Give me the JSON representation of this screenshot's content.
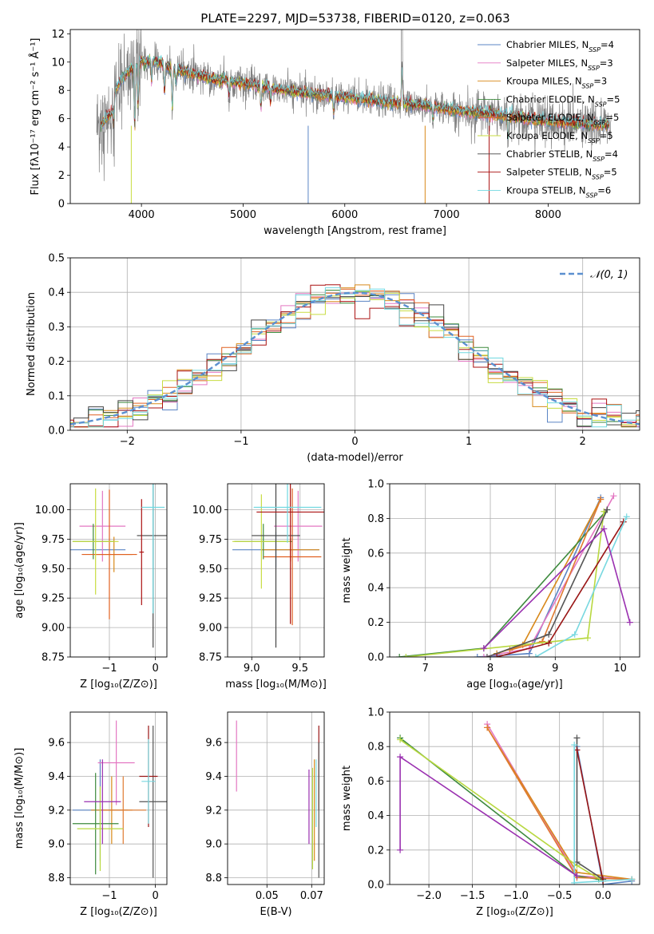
{
  "title": "PLATE=2297, MJD=53738, FIBERID=0120, z=0.063",
  "colors": {
    "series": [
      "#5b84c4",
      "#e377c2",
      "#d8891a",
      "#3d8a3d",
      "#e06020",
      "#c8dc40",
      "#444444",
      "#aa1111",
      "#70d8e0"
    ],
    "weights": [
      "#5b84c4",
      "#e377c2",
      "#d8891a",
      "#3d8a3d",
      "#e07a30",
      "#b8d840",
      "#555555",
      "#991515",
      "#78d8e0",
      "#9a30b0"
    ],
    "data_gray": "#808080",
    "normal_curve": "#5b90d0"
  },
  "chart_data": [
    {
      "type": "line",
      "panel": "spectrum",
      "title": "PLATE=2297, MJD=53738, FIBERID=0120, z=0.063",
      "xlabel": "wavelength [Angstrom, rest frame]",
      "ylabel": "Flux [fλ10⁻¹⁷ erg cm⁻² s⁻¹ Å⁻¹]",
      "xlim": [
        3300,
        8900
      ],
      "ylim": [
        0,
        12.3
      ],
      "xticks": [
        4000,
        5000,
        6000,
        7000,
        8000
      ],
      "yticks": [
        0,
        2,
        4,
        6,
        8,
        10,
        12
      ],
      "legend_position": "top-right",
      "legend": [
        {
          "name": "Chabrier MILES",
          "nssp": "4"
        },
        {
          "name": "Salpeter MILES",
          "nssp": "3"
        },
        {
          "name": "Kroupa MILES",
          "nssp": "3"
        },
        {
          "name": "Chabrier ELODIE",
          "nssp": "5"
        },
        {
          "name": "Salpeter ELODIE",
          "nssp": "5"
        },
        {
          "name": "Kroupa ELODIE",
          "nssp": "5"
        },
        {
          "name": "Chabrier STELIB",
          "nssp": "4"
        },
        {
          "name": "Salpeter STELIB",
          "nssp": "5"
        },
        {
          "name": "Kroupa STELIB",
          "nssp": "6"
        }
      ],
      "continuum": {
        "x": [
          3600,
          3700,
          3800,
          3900,
          4000,
          4100,
          4200,
          4300,
          4500,
          4700,
          5000,
          5300,
          5600,
          6000,
          6400,
          6800,
          7200,
          7600,
          8000,
          8400,
          8800
        ],
        "y": [
          6.3,
          7.2,
          8.8,
          9.5,
          10.0,
          10.1,
          9.9,
          9.5,
          9.2,
          8.8,
          8.5,
          8.1,
          7.8,
          7.5,
          7.2,
          6.9,
          6.5,
          6.2,
          5.8,
          5.6,
          5.5
        ]
      }
    },
    {
      "type": "step",
      "panel": "residual-histogram",
      "xlabel": "(data-model)/error",
      "ylabel": "Normed distribution",
      "xlim": [
        -2.5,
        2.5
      ],
      "ylim": [
        0,
        0.5
      ],
      "xticks": [
        -2,
        -1,
        0,
        1,
        2
      ],
      "yticks": [
        0.0,
        0.1,
        0.2,
        0.3,
        0.4,
        0.5
      ],
      "grid": true,
      "legend": [
        {
          "name": "𝒩(0, 1)"
        }
      ],
      "legend_position": "top-right",
      "bins": 40
    },
    {
      "type": "scatter",
      "panel": "age-vs-metallicity",
      "xlabel": "Z [log₁₀(Z/Z⊙)]",
      "ylabel": "age  [log₁₀(age/yr)]",
      "xlim": [
        -1.85,
        0.25
      ],
      "ylim": [
        8.75,
        10.22
      ],
      "xticks": [
        -1,
        0
      ],
      "yticks": [
        8.75,
        9.0,
        9.25,
        9.5,
        9.75,
        10.0
      ],
      "grid": true,
      "points": [
        {
          "x": -1.25,
          "y": 9.66,
          "xerr": 0.6,
          "yerr": 0.0
        },
        {
          "x": -1.15,
          "y": 9.86,
          "xerr": 0.5,
          "yerr": 0.3
        },
        {
          "x": -0.9,
          "y": 9.62,
          "xerr": 0.4,
          "yerr": 0.15
        },
        {
          "x": -1.35,
          "y": 9.73,
          "xerr": 0.45,
          "yerr": 0.15
        },
        {
          "x": -1.0,
          "y": 9.62,
          "xerr": 0.6,
          "yerr": 0.55
        },
        {
          "x": -1.3,
          "y": 9.73,
          "xerr": 0.5,
          "yerr": 0.45
        },
        {
          "x": -0.05,
          "y": 9.78,
          "xerr": 0.35,
          "yerr": 0.95
        },
        {
          "x": -0.3,
          "y": 9.64,
          "xerr": 0.05,
          "yerr": 0.45
        },
        {
          "x": -0.05,
          "y": 10.02,
          "xerr": 0.25,
          "yerr": 0.9
        }
      ]
    },
    {
      "type": "scatter",
      "panel": "age-vs-mass",
      "xlabel": "mass [log₁₀(M/M⊙)]",
      "ylabel": "",
      "xlim": [
        8.75,
        9.75
      ],
      "ylim": [
        8.75,
        10.22
      ],
      "xticks": [
        9.0,
        9.5
      ],
      "yticks": [
        8.75,
        9.0,
        9.25,
        9.5,
        9.75,
        10.0
      ],
      "grid": true,
      "points": [
        {
          "x": 9.25,
          "y": 9.66,
          "xerr": 0.45,
          "yerr": 0.15
        },
        {
          "x": 9.48,
          "y": 9.86,
          "xerr": 0.25,
          "yerr": 0.3
        },
        {
          "x": 9.4,
          "y": 9.66,
          "xerr": 0.3,
          "yerr": 0.1
        },
        {
          "x": 9.12,
          "y": 9.73,
          "xerr": 0.3,
          "yerr": 0.15
        },
        {
          "x": 9.42,
          "y": 9.6,
          "xerr": 0.3,
          "yerr": 0.58
        },
        {
          "x": 9.1,
          "y": 9.73,
          "xerr": 0.3,
          "yerr": 0.4
        },
        {
          "x": 9.25,
          "y": 9.78,
          "xerr": 0.25,
          "yerr": 0.95
        },
        {
          "x": 9.4,
          "y": 9.98,
          "xerr": 0.35,
          "yerr": 0.95
        },
        {
          "x": 9.37,
          "y": 10.02,
          "xerr": 0.35,
          "yerr": 0.3
        }
      ]
    },
    {
      "type": "line",
      "panel": "mass-weight-vs-age",
      "xlabel": "age  [log₁₀(age/yr)]",
      "ylabel": "mass weight",
      "xlim": [
        6.45,
        10.3
      ],
      "ylim": [
        0,
        1
      ],
      "xticks": [
        7,
        8,
        9,
        10
      ],
      "yticks": [
        0.0,
        0.2,
        0.4,
        0.6,
        0.8,
        1.0
      ],
      "grid": true,
      "series": [
        {
          "x": [
            7.8,
            8.6,
            9.7
          ],
          "y": [
            0.0,
            0.02,
            0.92
          ]
        },
        {
          "x": [
            7.9,
            8.6,
            9.9
          ],
          "y": [
            0.0,
            0.05,
            0.93
          ]
        },
        {
          "x": [
            8.1,
            8.5,
            9.7
          ],
          "y": [
            0.02,
            0.07,
            0.91
          ]
        },
        {
          "x": [
            6.6,
            7.9,
            9.8
          ],
          "y": [
            0.0,
            0.05,
            0.85
          ]
        },
        {
          "x": [
            8.3,
            8.8,
            9.7
          ],
          "y": [
            0.04,
            0.09,
            0.91
          ]
        },
        {
          "x": [
            6.7,
            9.5,
            9.75
          ],
          "y": [
            0.0,
            0.11,
            0.84
          ]
        },
        {
          "x": [
            7.95,
            8.9,
            9.8
          ],
          "y": [
            0.0,
            0.13,
            0.85
          ]
        },
        {
          "x": [
            8.1,
            8.9,
            10.05
          ],
          "y": [
            0.0,
            0.08,
            0.78
          ]
        },
        {
          "x": [
            8.7,
            9.3,
            10.1
          ],
          "y": [
            0.0,
            0.13,
            0.81
          ]
        },
        {
          "x": [
            7.9,
            9.75,
            10.15
          ],
          "y": [
            0.05,
            0.74,
            0.2
          ]
        }
      ]
    },
    {
      "type": "scatter",
      "panel": "mass-vs-metallicity",
      "xlabel": "Z [log₁₀(Z/Z⊙)]",
      "ylabel": "mass [log₁₀(M/M⊙)]",
      "xlim": [
        -1.85,
        0.25
      ],
      "ylim": [
        8.76,
        9.78
      ],
      "xticks": [
        -1,
        0
      ],
      "yticks": [
        8.8,
        9.0,
        9.2,
        9.4,
        9.6
      ],
      "grid": true,
      "points": [
        {
          "x": -1.2,
          "y": 9.2,
          "xerr": 0.6,
          "yerr": 0.3
        },
        {
          "x": -0.85,
          "y": 9.48,
          "xerr": 0.4,
          "yerr": 0.25
        },
        {
          "x": -0.95,
          "y": 9.2,
          "xerr": 0.45,
          "yerr": 0.2
        },
        {
          "x": -1.3,
          "y": 9.12,
          "xerr": 0.5,
          "yerr": 0.3
        },
        {
          "x": -0.7,
          "y": 9.2,
          "xerr": 0.5,
          "yerr": 0.2
        },
        {
          "x": -1.2,
          "y": 9.09,
          "xerr": 0.5,
          "yerr": 0.25
        },
        {
          "x": -0.05,
          "y": 9.25,
          "xerr": 0.3,
          "yerr": 0.45
        },
        {
          "x": -0.15,
          "y": 9.4,
          "xerr": 0.2,
          "yerr": 0.3
        },
        {
          "x": -0.15,
          "y": 9.37,
          "xerr": 0.15,
          "yerr": 0.25
        },
        {
          "x": -1.15,
          "y": 9.25,
          "xerr": 0.4,
          "yerr": 0.25
        }
      ]
    },
    {
      "type": "scatter",
      "panel": "mass-vs-ebv",
      "xlabel": "E(B-V)",
      "ylabel": "",
      "xlim": [
        0.028,
        0.082
      ],
      "ylim": [
        8.76,
        9.78
      ],
      "xticks": [
        0.05,
        0.075
      ],
      "yticks": [
        8.8,
        9.0,
        9.2,
        9.4,
        9.6
      ],
      "grid": true,
      "points": [
        {
          "x": 0.033,
          "y": 9.52,
          "yerr": 0.21
        },
        {
          "x": 0.0735,
          "y": 9.22,
          "yerr": 0.22
        },
        {
          "x": 0.0755,
          "y": 9.15,
          "yerr": 0.3
        },
        {
          "x": 0.0765,
          "y": 9.2,
          "yerr": 0.3
        },
        {
          "x": 0.079,
          "y": 9.45,
          "yerr": 0.25
        },
        {
          "x": 0.079,
          "y": 9.2,
          "yerr": 0.4
        },
        {
          "x": 0.0775,
          "y": 9.3,
          "yerr": 0.2
        }
      ]
    },
    {
      "type": "line",
      "panel": "mass-weight-vs-metallicity",
      "xlabel": "Z [log₁₀(Z/Z⊙)]",
      "ylabel": "mass weight",
      "xlim": [
        -2.45,
        0.42
      ],
      "ylim": [
        0,
        1
      ],
      "xticks": [
        -2.0,
        -1.5,
        -1.0,
        -0.5,
        0.0
      ],
      "yticks": [
        0.0,
        0.2,
        0.4,
        0.6,
        0.8,
        1.0
      ],
      "grid": true,
      "series": [
        {
          "x": [
            -0.3,
            0.0,
            0.33
          ],
          "y": [
            0.8,
            0.0,
            0.02
          ]
        },
        {
          "x": [
            -1.33,
            -0.3,
            0.33
          ],
          "y": [
            0.93,
            0.05,
            0.03
          ]
        },
        {
          "x": [
            -1.33,
            -0.3,
            0.33
          ],
          "y": [
            0.91,
            0.07,
            0.03
          ]
        },
        {
          "x": [
            -2.33,
            -0.3,
            -0.05
          ],
          "y": [
            0.85,
            0.05,
            0.03
          ]
        },
        {
          "x": [
            -1.33,
            -0.3,
            0.33
          ],
          "y": [
            0.91,
            0.04,
            0.03
          ]
        },
        {
          "x": [
            -2.33,
            -0.3,
            0.0
          ],
          "y": [
            0.84,
            0.11,
            0.02
          ]
        },
        {
          "x": [
            -0.3,
            -0.3,
            0.0
          ],
          "y": [
            0.85,
            0.13,
            0.03
          ]
        },
        {
          "x": [
            -0.3,
            0.0
          ],
          "y": [
            0.78,
            0.02
          ]
        },
        {
          "x": [
            -0.33,
            -0.33,
            0.33
          ],
          "y": [
            0.81,
            0.01,
            0.03
          ]
        },
        {
          "x": [
            -2.33,
            -2.33,
            -0.3
          ],
          "y": [
            0.2,
            0.74,
            0.05
          ]
        }
      ]
    }
  ]
}
